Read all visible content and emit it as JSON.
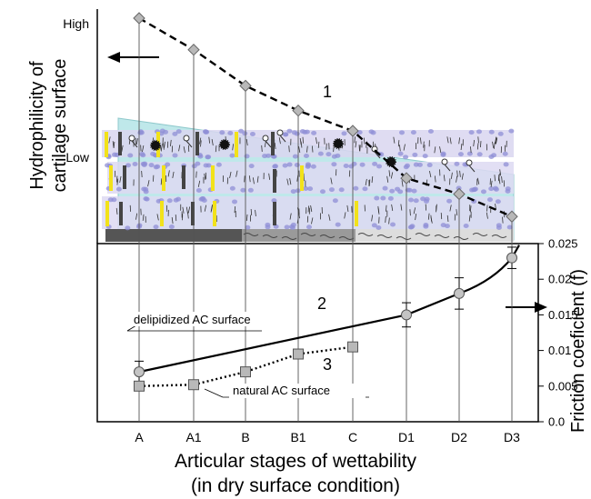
{
  "chart_data": {
    "type": "line",
    "categories": [
      "A",
      "A1",
      "B",
      "B1",
      "C",
      "D1",
      "D2",
      "D3"
    ],
    "xlabel": "Articular stages of wettability",
    "xlabel_sub": "(in dry surface condition)",
    "top_panel": {
      "ylabel_line1": "Hydrophilicity of",
      "ylabel_line2": "cartilage surface",
      "y_ticks": [
        "High",
        "Low"
      ],
      "series": [
        {
          "label": "1",
          "style": "dashed",
          "marker": "diamond",
          "values": [
            1.0,
            0.86,
            0.7,
            0.59,
            0.5,
            0.29,
            0.22,
            0.12
          ]
        }
      ]
    },
    "bottom_panel": {
      "ylabel": "Friction coeficient (f)",
      "ylim": [
        0.0,
        0.025
      ],
      "y_ticks": [
        "0.025",
        "0.02",
        "0.015",
        "0.01",
        "0.005",
        "0.0"
      ],
      "series": [
        {
          "label": "2",
          "name": "delipidized AC surface",
          "style": "solid",
          "marker": "circle",
          "points": [
            {
              "cat": "A",
              "value": 0.007,
              "err": 0.0015
            },
            {
              "cat": "D1",
              "value": 0.015,
              "err": 0.0017
            },
            {
              "cat": "D2",
              "value": 0.018,
              "err": 0.0022
            },
            {
              "cat": "D3",
              "value": 0.023,
              "err": 0.0015
            }
          ]
        },
        {
          "label": "3",
          "name": "natural AC surface",
          "style": "dotted",
          "marker": "square",
          "points": [
            {
              "cat": "A",
              "value": 0.005
            },
            {
              "cat": "A1",
              "value": 0.0052
            },
            {
              "cat": "B",
              "value": 0.007
            },
            {
              "cat": "B1",
              "value": 0.0095
            },
            {
              "cat": "C",
              "value": 0.0105
            }
          ]
        }
      ]
    },
    "arrows": [
      "left arrow points to hydrophilicity axis",
      "right arrow points to friction axis"
    ]
  }
}
